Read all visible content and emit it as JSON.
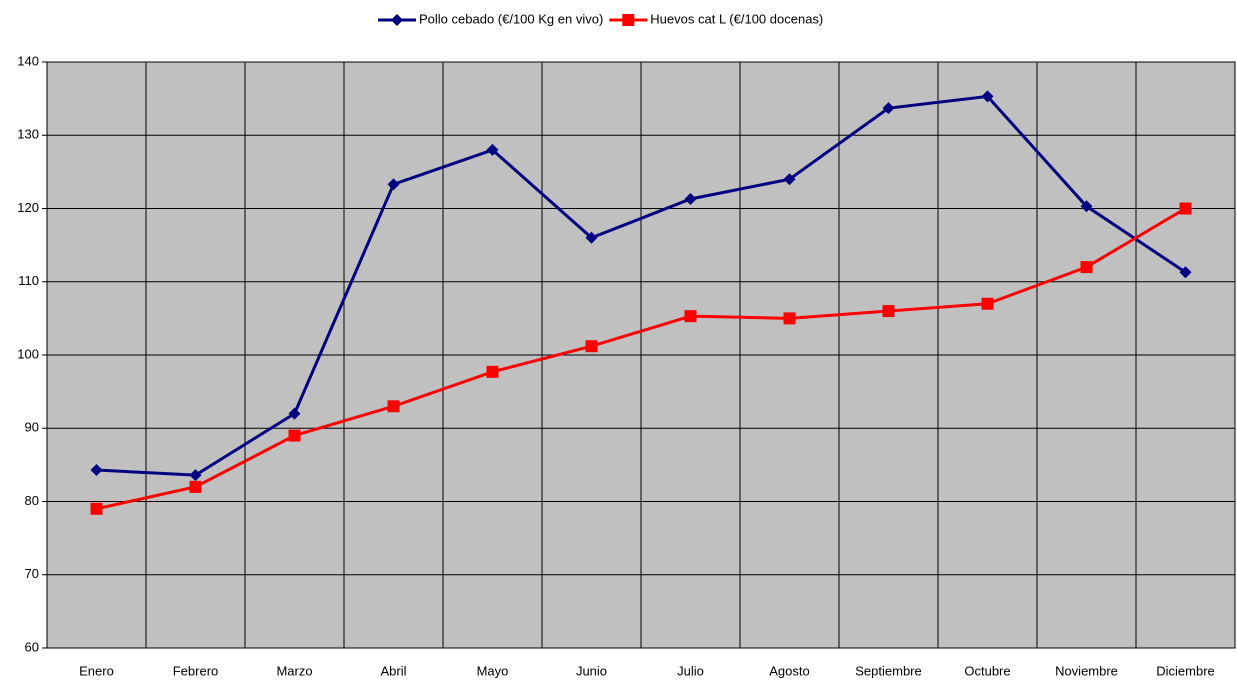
{
  "chart_data": {
    "type": "line",
    "categories": [
      "Enero",
      "Febrero",
      "Marzo",
      "Abril",
      "Mayo",
      "Junio",
      "Julio",
      "Agosto",
      "Septiembre",
      "Octubre",
      "Noviembre",
      "Diciembre"
    ],
    "series": [
      {
        "name": "Pollo cebado (€/100 Kg en vivo)",
        "color": "#000080",
        "marker": "diamond",
        "values": [
          84.3,
          83.6,
          92,
          123.3,
          128,
          116,
          121.3,
          124,
          133.7,
          135.3,
          120.3,
          111.3
        ]
      },
      {
        "name": "Huevos cat L (€/100 docenas)",
        "color": "#ff0000",
        "marker": "square",
        "values": [
          79,
          82,
          89,
          93,
          97.7,
          101.2,
          105.3,
          105,
          106,
          107,
          112,
          120
        ]
      }
    ],
    "ylim": [
      60,
      140
    ],
    "yticks": [
      60,
      70,
      80,
      90,
      100,
      110,
      120,
      130,
      140
    ],
    "grid": true,
    "legend": "top"
  }
}
